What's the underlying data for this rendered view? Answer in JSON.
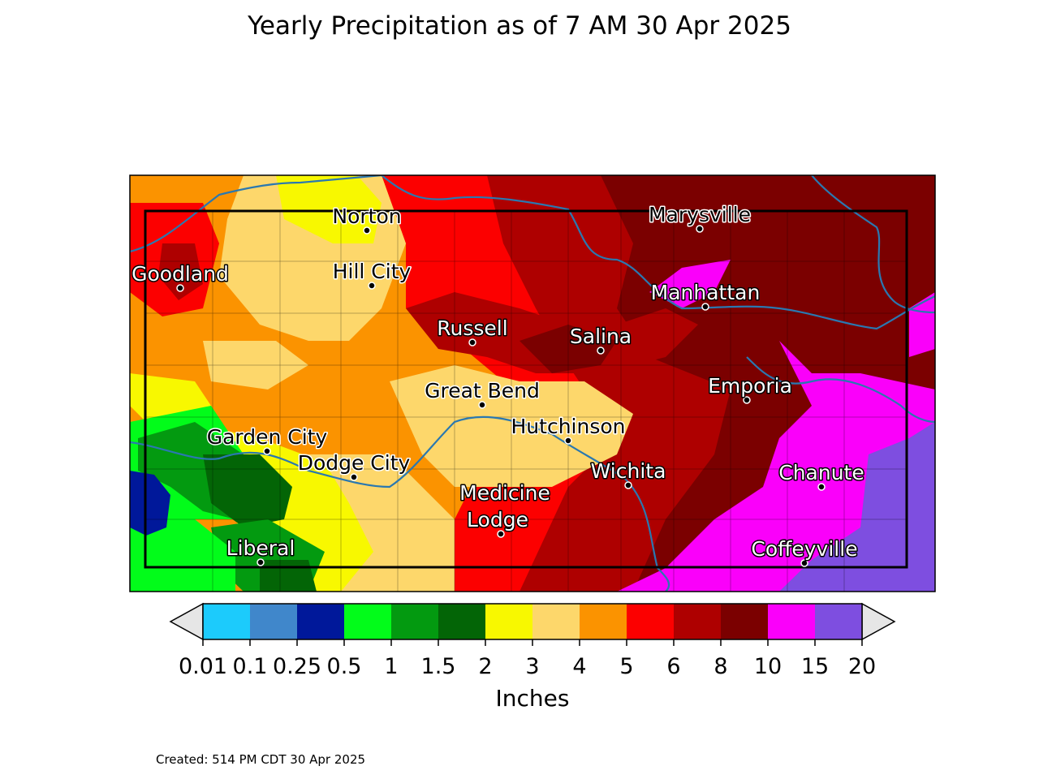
{
  "title": "Yearly Precipitation as of 7 AM 30 Apr 2025",
  "cities": [
    {
      "name": "Norton",
      "label_style": "dark"
    },
    {
      "name": "Marysville",
      "label_style": "dark"
    },
    {
      "name": "Goodland",
      "label_style": "light"
    },
    {
      "name": "Hill City",
      "label_style": "dark"
    },
    {
      "name": "Manhattan",
      "label_style": "light"
    },
    {
      "name": "Russell",
      "label_style": "light"
    },
    {
      "name": "Salina",
      "label_style": "light"
    },
    {
      "name": "Emporia",
      "label_style": "light"
    },
    {
      "name": "Great Bend",
      "label_style": "dark"
    },
    {
      "name": "Hutchinson",
      "label_style": "dark"
    },
    {
      "name": "Garden City",
      "label_style": "dark"
    },
    {
      "name": "Dodge City",
      "label_style": "dark"
    },
    {
      "name": "Wichita",
      "label_style": "light"
    },
    {
      "name": "Chanute",
      "label_style": "light"
    },
    {
      "name": "Medicine",
      "label_style": "light"
    },
    {
      "name": "Lodge",
      "label_style": "light"
    },
    {
      "name": "Liberal",
      "label_style": "light"
    },
    {
      "name": "Coffeyville",
      "label_style": "light"
    }
  ],
  "colorbar": {
    "title": "Inches",
    "ticks": [
      "0.01",
      "0.1",
      "0.25",
      "0.5",
      "1",
      "1.5",
      "2",
      "3",
      "4",
      "5",
      "6",
      "8",
      "10",
      "15",
      "20"
    ],
    "colors": [
      "#1ccbfc",
      "#4087cb",
      "#00189a",
      "#02fc1a",
      "#039a10",
      "#036506",
      "#f8f800",
      "#fdd76b",
      "#fb9300",
      "#fc0000",
      "#ae0000",
      "#7b0000",
      "#fa00fa",
      "#7e4ee0"
    ],
    "extend_color": "#e6e6e6"
  },
  "created": "Created: 514 PM CDT 30 Apr 2025"
}
